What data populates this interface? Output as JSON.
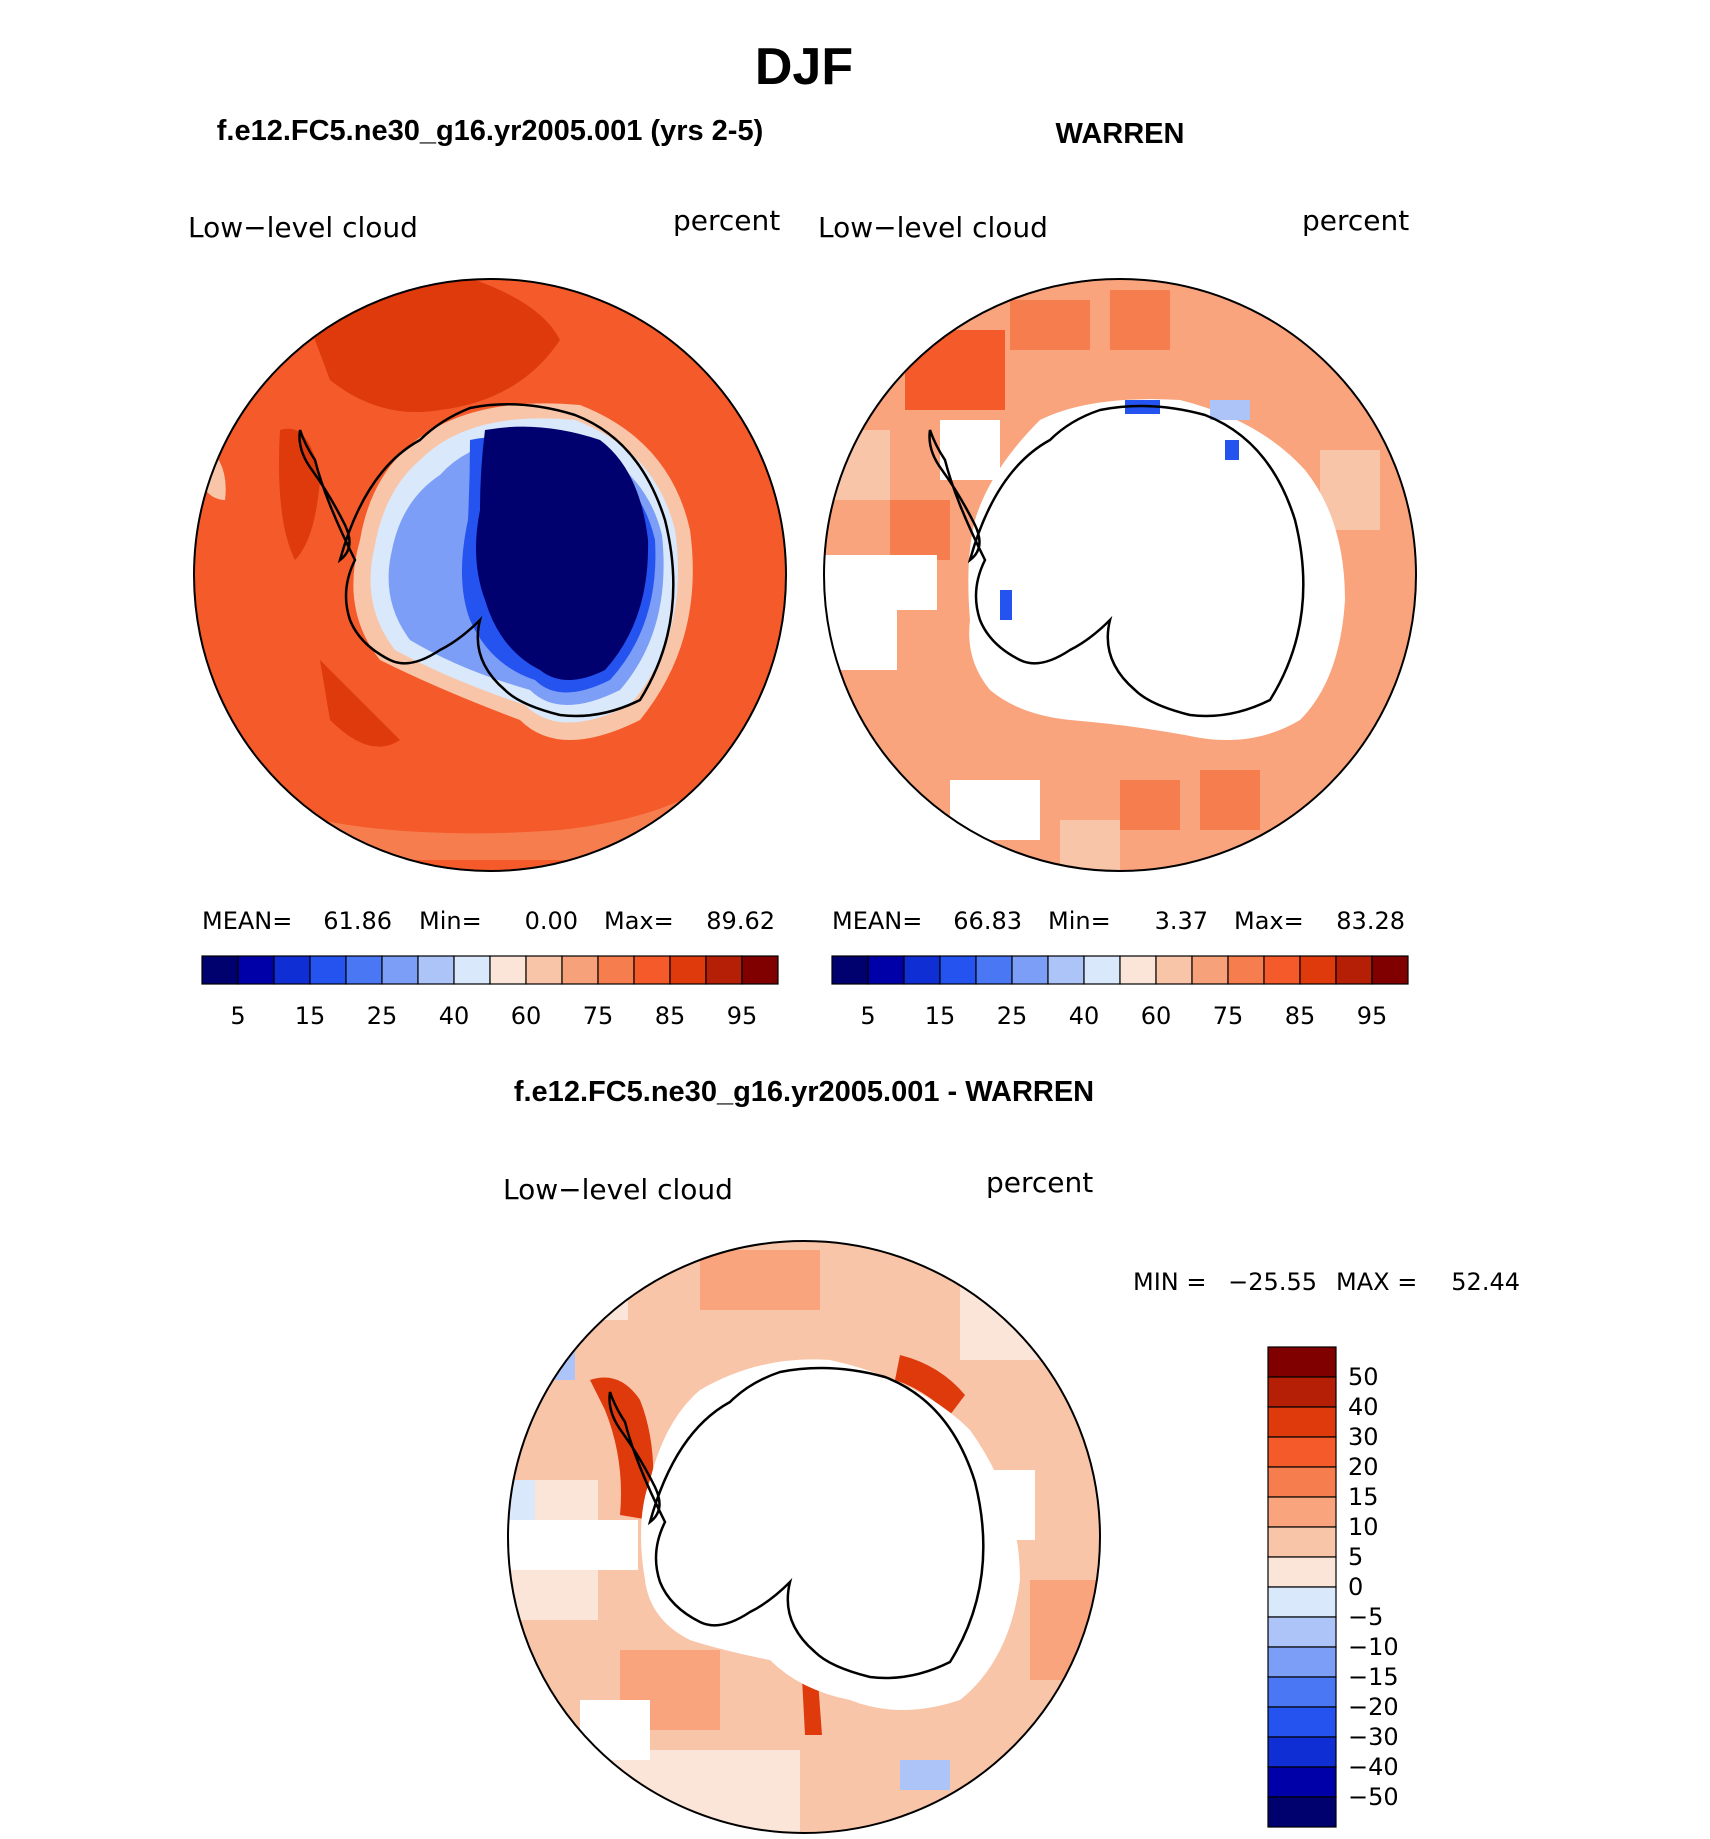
{
  "figure": {
    "season": "DJF",
    "panel_left_title": "f.e12.FC5.ne30_g16.yr2005.001 (yrs 2-5)",
    "panel_right_title": "WARREN",
    "diff_title": "f.e12.FC5.ne30_g16.yr2005.001 - WARREN"
  },
  "chart_data": [
    {
      "type": "heatmap",
      "panel": "model",
      "projection": "south-polar-stereographic",
      "title": "f.e12.FC5.ne30_g16.yr2005.001 (yrs 2-5)",
      "variable": "Low−level cloud",
      "units": "percent",
      "stats": {
        "mean_label": "MEAN=",
        "mean": "61.86",
        "min_label": "Min=",
        "min": "0.00",
        "max_label": "Max=",
        "max": "89.62"
      },
      "levels": [
        5,
        10,
        15,
        20,
        25,
        30,
        40,
        50,
        60,
        70,
        75,
        80,
        85,
        90,
        95
      ],
      "tick_labels": [
        "5",
        "15",
        "25",
        "40",
        "60",
        "75",
        "85",
        "95"
      ],
      "colors": [
        "#00006e",
        "#0000a8",
        "#0f2fd4",
        "#2453ef",
        "#4a78f5",
        "#7c9ef7",
        "#adc4f9",
        "#d9e8fa",
        "#fbe5d8",
        "#f9c5a9",
        "#f7a17a",
        "#f67e4e",
        "#f45a2a",
        "#de3a0c",
        "#b41f06",
        "#800000"
      ]
    },
    {
      "type": "heatmap",
      "panel": "obs",
      "projection": "south-polar-stereographic",
      "title": "WARREN",
      "variable": "Low−level cloud",
      "units": "percent",
      "stats": {
        "mean_label": "MEAN=",
        "mean": "66.83",
        "min_label": "Min=",
        "min": "3.37",
        "max_label": "Max=",
        "max": "83.28"
      },
      "levels": [
        5,
        10,
        15,
        20,
        25,
        30,
        40,
        50,
        60,
        70,
        75,
        80,
        85,
        90,
        95
      ],
      "tick_labels": [
        "5",
        "15",
        "25",
        "40",
        "60",
        "75",
        "85",
        "95"
      ],
      "colors": [
        "#00006e",
        "#0000a8",
        "#0f2fd4",
        "#2453ef",
        "#4a78f5",
        "#7c9ef7",
        "#adc4f9",
        "#d9e8fa",
        "#fbe5d8",
        "#f9c5a9",
        "#f7a17a",
        "#f67e4e",
        "#f45a2a",
        "#de3a0c",
        "#b41f06",
        "#800000"
      ]
    },
    {
      "type": "heatmap",
      "panel": "difference",
      "projection": "south-polar-stereographic",
      "title": "f.e12.FC5.ne30_g16.yr2005.001 - WARREN",
      "variable": "Low−level cloud",
      "units": "percent",
      "stats": {
        "min_label": "MIN =",
        "min": "−25.55",
        "max_label": "MAX =",
        "max": "52.44"
      },
      "levels": [
        -50,
        -40,
        -30,
        -20,
        -15,
        -10,
        -5,
        0,
        5,
        10,
        15,
        20,
        30,
        40,
        50
      ],
      "tick_labels": [
        "50",
        "40",
        "30",
        "20",
        "15",
        "10",
        "5",
        "0",
        "−5",
        "−10",
        "−15",
        "−20",
        "−30",
        "−40",
        "−50"
      ],
      "colors": [
        "#800000",
        "#b41f06",
        "#de3a0c",
        "#f45a2a",
        "#f67e4e",
        "#f9a47c",
        "#f9c5a9",
        "#fbe5d8",
        "#d9e8fa",
        "#adc4f9",
        "#7c9ef7",
        "#4a78f5",
        "#2453ef",
        "#0f2fd4",
        "#0000a8",
        "#00006e"
      ]
    }
  ]
}
